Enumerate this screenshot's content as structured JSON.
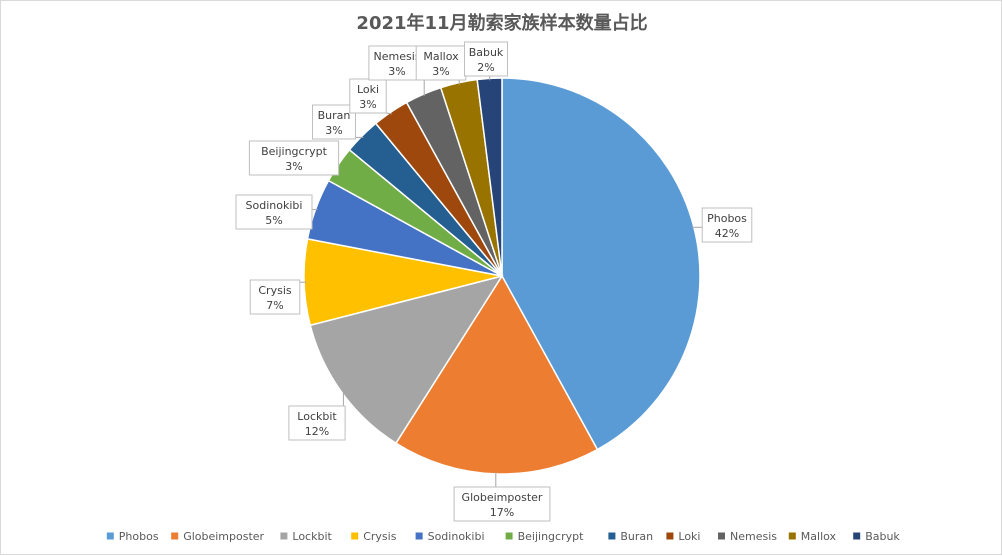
{
  "chart_data": {
    "type": "pie",
    "title": "2021年11月勒索家族样本数量占比",
    "categories": [
      "Phobos",
      "Globeimposter",
      "Lockbit",
      "Crysis",
      "Sodinokibi",
      "Beijingcrypt",
      "Buran",
      "Loki",
      "Nemesis",
      "Mallox",
      "Babuk"
    ],
    "values": [
      42,
      17,
      12,
      7,
      5,
      3,
      3,
      3,
      3,
      3,
      2
    ],
    "value_labels": [
      "42%",
      "17%",
      "12%",
      "7%",
      "5%",
      "3%",
      "3%",
      "3%",
      "3%",
      "3%",
      "2%"
    ],
    "colors": [
      "#5b9bd5",
      "#ed7d31",
      "#a5a5a5",
      "#ffc000",
      "#4472c4",
      "#70ad47",
      "#255e91",
      "#9e480e",
      "#636363",
      "#997300",
      "#264478"
    ],
    "legend_position": "bottom"
  }
}
